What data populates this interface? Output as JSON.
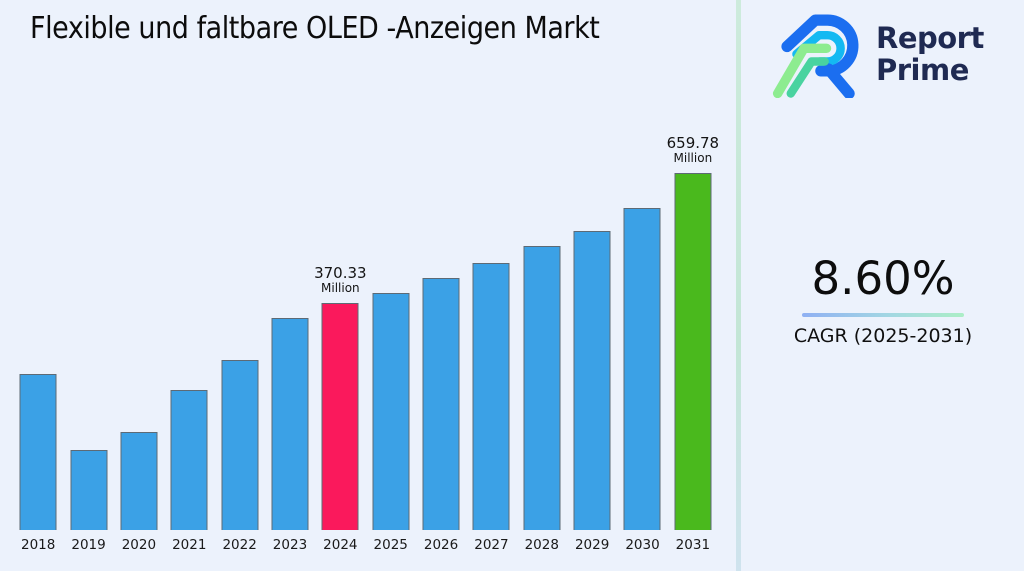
{
  "title": "Flexible und faltbare OLED -Anzeigen Markt",
  "logo": {
    "name": "Report Prime",
    "line1": "Report",
    "line2": "Prime"
  },
  "cagr": {
    "value": "8.60%",
    "label": "CAGR (2025-2031)"
  },
  "colors": {
    "background": "#ecf2fc",
    "bar_default": "#3ba1e6",
    "bar_highlight_2024": "#fa195c",
    "bar_highlight_2031": "#4ab91d",
    "bar_border": "#5d6a75",
    "separator": "#c4e7d4",
    "logo_navy": "#1f2a52",
    "underline_gradient": [
      "#8fb0f3",
      "#abeec6"
    ]
  },
  "chart_data": {
    "type": "bar",
    "title": "Flexible und faltbare OLED -Anzeigen Markt",
    "unit": "Million",
    "xlabel": "",
    "ylabel": "",
    "grid": false,
    "legend": false,
    "ylim": [
      -135,
      685
    ],
    "categories": [
      "2018",
      "2019",
      "2020",
      "2021",
      "2022",
      "2023",
      "2024",
      "2025",
      "2026",
      "2027",
      "2028",
      "2029",
      "2030",
      "2031"
    ],
    "values": [
      213,
      43,
      83,
      177,
      244,
      337,
      370.33,
      393,
      427,
      460,
      498,
      531,
      583,
      659.78
    ],
    "default_bar_color": "#3ba1e6",
    "highlight_colors": {
      "2024": "#fa195c",
      "2031": "#4ab91d"
    },
    "annotations": {
      "2024": {
        "value": "370.33",
        "unit": "Million"
      },
      "2031": {
        "value": "659.78",
        "unit": "Million"
      }
    }
  }
}
